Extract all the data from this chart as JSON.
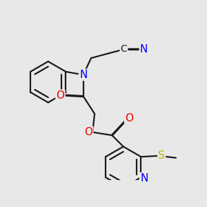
{
  "bg_color": "#e8e8e8",
  "bond_color": "#1a1a1a",
  "bond_width": 1.6,
  "atom_colors": {
    "C": "#1a1a1a",
    "N": "#0000ee",
    "O": "#ee0000",
    "S": "#bbbb00"
  },
  "dbo": 0.018
}
